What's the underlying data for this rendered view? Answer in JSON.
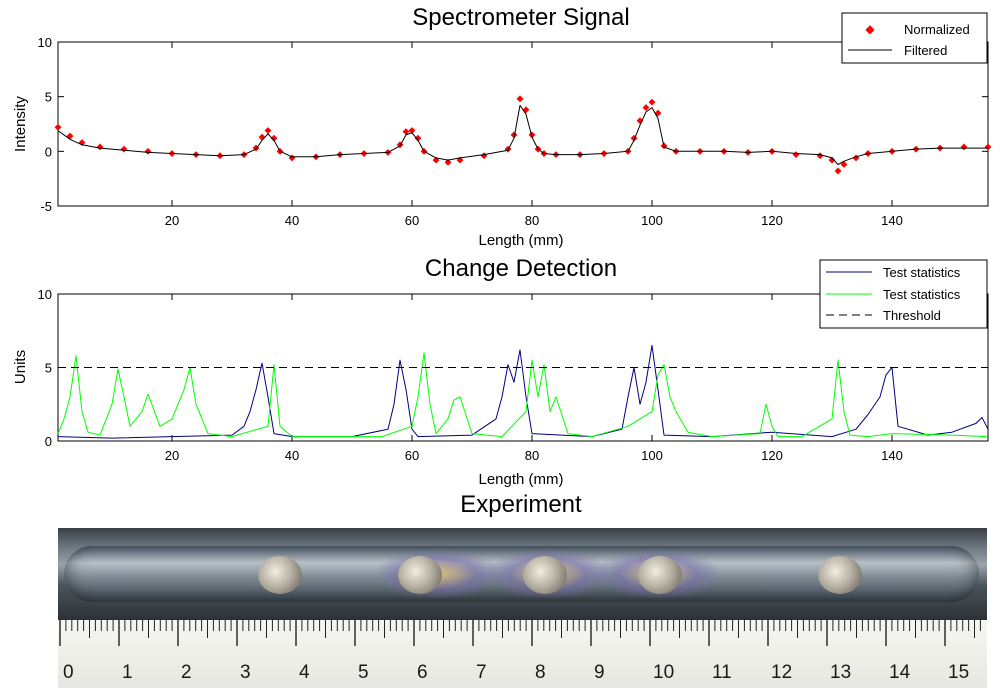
{
  "chart_data": [
    {
      "type": "scatter",
      "title": "Spectrometer Signal",
      "xlabel": "Length (mm)",
      "ylabel": "Intensity",
      "xlim": [
        1,
        156
      ],
      "ylim": [
        -5,
        10
      ],
      "xticks": [
        20,
        40,
        60,
        80,
        100,
        120,
        140
      ],
      "yticks": [
        -5,
        0,
        5,
        10
      ],
      "legend_position": "top-right",
      "grid": false,
      "series": [
        {
          "name": "Normalized",
          "style": "red-diamond-markers",
          "color": "#ff0000",
          "x": [
            1,
            3,
            5,
            8,
            12,
            16,
            20,
            24,
            28,
            32,
            34,
            35,
            36,
            37,
            38,
            40,
            44,
            48,
            52,
            56,
            58,
            59,
            60,
            61,
            62,
            64,
            66,
            68,
            72,
            76,
            77,
            78,
            79,
            80,
            81,
            82,
            84,
            88,
            92,
            96,
            97,
            98,
            99,
            100,
            101,
            102,
            104,
            108,
            112,
            116,
            120,
            124,
            128,
            130,
            131,
            132,
            134,
            136,
            140,
            144,
            148,
            152,
            156
          ],
          "y": [
            2.2,
            1.4,
            0.8,
            0.4,
            0.2,
            0.0,
            -0.2,
            -0.3,
            -0.4,
            -0.3,
            0.3,
            1.3,
            1.9,
            1.2,
            0.0,
            -0.6,
            -0.5,
            -0.3,
            -0.2,
            -0.1,
            0.6,
            1.8,
            1.9,
            1.2,
            0.0,
            -0.8,
            -1.0,
            -0.8,
            -0.4,
            0.2,
            1.5,
            4.8,
            3.8,
            1.5,
            0.2,
            -0.2,
            -0.3,
            -0.3,
            -0.2,
            0.0,
            1.2,
            2.8,
            4.0,
            4.5,
            3.5,
            0.5,
            0.0,
            0.0,
            0.0,
            -0.1,
            0.0,
            -0.3,
            -0.4,
            -0.8,
            -1.8,
            -1.2,
            -0.6,
            -0.2,
            0.0,
            0.2,
            0.3,
            0.4,
            0.4
          ]
        },
        {
          "name": "Filtered",
          "style": "black-line",
          "color": "#000000",
          "x": [
            1,
            3,
            5,
            8,
            12,
            16,
            20,
            24,
            28,
            32,
            34,
            35,
            36,
            37,
            38,
            40,
            44,
            48,
            52,
            56,
            58,
            59,
            60,
            61,
            62,
            64,
            66,
            68,
            72,
            76,
            77,
            78,
            79,
            80,
            81,
            82,
            84,
            88,
            92,
            96,
            97,
            98,
            99,
            100,
            101,
            102,
            104,
            108,
            112,
            116,
            120,
            124,
            128,
            130,
            131,
            132,
            134,
            136,
            140,
            144,
            148,
            152,
            156
          ],
          "y": [
            1.9,
            1.1,
            0.6,
            0.3,
            0.1,
            -0.1,
            -0.2,
            -0.3,
            -0.4,
            -0.3,
            0.2,
            1.0,
            1.6,
            1.0,
            0.0,
            -0.5,
            -0.5,
            -0.3,
            -0.2,
            -0.1,
            0.5,
            1.5,
            1.7,
            1.0,
            0.0,
            -0.6,
            -0.8,
            -0.6,
            -0.3,
            0.1,
            1.2,
            4.2,
            3.4,
            1.3,
            0.2,
            -0.2,
            -0.3,
            -0.3,
            -0.2,
            0.0,
            1.0,
            2.4,
            3.6,
            4.0,
            3.0,
            0.4,
            0.0,
            0.0,
            0.0,
            -0.1,
            0.0,
            -0.2,
            -0.3,
            -0.6,
            -1.2,
            -0.9,
            -0.5,
            -0.2,
            0.0,
            0.2,
            0.3,
            0.3,
            0.3
          ]
        }
      ]
    },
    {
      "type": "line",
      "title": "Change Detection",
      "xlabel": "Length (mm)",
      "ylabel": "Units",
      "xlim": [
        1,
        156
      ],
      "ylim": [
        0,
        10
      ],
      "xticks": [
        20,
        40,
        60,
        80,
        100,
        120,
        140
      ],
      "yticks": [
        0,
        5,
        10
      ],
      "legend_position": "top-right",
      "grid": false,
      "series": [
        {
          "name": "Test statistics",
          "color": "#00007f",
          "x": [
            1,
            10,
            20,
            30,
            32,
            33,
            34,
            35,
            36,
            37,
            40,
            50,
            56,
            57,
            58,
            59,
            60,
            61,
            70,
            74,
            75,
            76,
            77,
            78,
            79,
            80,
            90,
            95,
            96,
            97,
            98,
            99,
            100,
            101,
            102,
            110,
            120,
            130,
            134,
            136,
            138,
            139,
            140,
            141,
            146,
            150,
            154,
            155,
            156
          ],
          "y": [
            0.3,
            0.2,
            0.3,
            0.4,
            1.0,
            2.0,
            3.5,
            5.3,
            3.0,
            0.5,
            0.3,
            0.3,
            0.8,
            2.5,
            5.5,
            3.5,
            0.8,
            0.3,
            0.4,
            1.5,
            3.0,
            5.2,
            4.0,
            6.2,
            3.0,
            0.5,
            0.3,
            0.8,
            3.0,
            5.0,
            2.5,
            4.0,
            6.5,
            3.5,
            0.4,
            0.3,
            0.6,
            0.3,
            0.8,
            1.8,
            3.0,
            4.5,
            5.0,
            1.0,
            0.4,
            0.6,
            1.2,
            1.6,
            0.8
          ]
        },
        {
          "name": "Test statistics",
          "color": "#00ff00",
          "x": [
            1,
            2,
            3,
            4,
            5,
            6,
            8,
            10,
            11,
            12,
            13,
            15,
            16,
            18,
            20,
            22,
            23,
            24,
            26,
            30,
            36,
            37,
            38,
            40,
            45,
            50,
            55,
            60,
            61,
            62,
            63,
            64,
            66,
            67,
            68,
            70,
            75,
            79,
            80,
            81,
            82,
            83,
            84,
            86,
            90,
            96,
            100,
            101,
            102,
            103,
            104,
            106,
            110,
            118,
            119,
            120,
            121,
            125,
            130,
            131,
            132,
            133,
            136,
            140,
            150,
            156
          ],
          "y": [
            0.5,
            1.5,
            3.0,
            5.8,
            2.0,
            0.6,
            0.4,
            2.5,
            4.9,
            3.0,
            1.0,
            2.0,
            3.2,
            1.0,
            1.5,
            3.5,
            5.0,
            2.5,
            0.5,
            0.3,
            1.0,
            5.2,
            1.0,
            0.3,
            0.3,
            0.3,
            0.3,
            1.0,
            3.0,
            6.0,
            2.5,
            0.5,
            1.5,
            2.8,
            3.0,
            0.5,
            0.3,
            2.0,
            5.5,
            3.0,
            5.2,
            2.0,
            3.0,
            0.5,
            0.3,
            1.0,
            2.0,
            4.5,
            5.2,
            3.0,
            2.0,
            0.6,
            0.3,
            0.5,
            2.5,
            1.0,
            0.3,
            0.3,
            1.5,
            5.5,
            2.0,
            0.4,
            0.3,
            0.5,
            0.4,
            0.3
          ]
        },
        {
          "name": "Threshold",
          "color": "#000000",
          "style": "dashed",
          "x": [
            1,
            156
          ],
          "y": [
            5,
            5
          ]
        }
      ]
    }
  ],
  "experiment": {
    "title": "Experiment",
    "ruler_numbers": [
      "0",
      "1",
      "2",
      "3",
      "4",
      "5",
      "6",
      "7",
      "8",
      "9",
      "10",
      "11",
      "12",
      "13",
      "14",
      "15"
    ]
  }
}
